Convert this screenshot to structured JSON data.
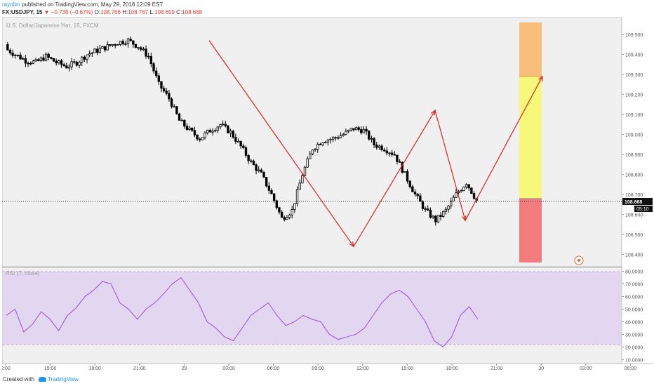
{
  "header": {
    "user": "raynlim",
    "published": "published on TradingView.com, May 29, 2018 12:09 EST",
    "symbol": "FX:USDJPY, 15",
    "change": "▼ −0.736 (−0.67%)",
    "o_label": "O:",
    "o_value": "108.766",
    "h_label": "H:",
    "h_value": "108.767",
    "l_label": "L:",
    "l_value": "108.659",
    "c_label": "C:",
    "c_value": "108.668"
  },
  "price_pane": {
    "title": "U.S. Dollar/Japanese Yen, 15, FXCM",
    "ticks": [
      "109.500",
      "109.400",
      "109.300",
      "109.200",
      "109.100",
      "109.000",
      "108.900",
      "108.800",
      "108.700",
      "108.600",
      "108.500",
      "108.400"
    ],
    "last_price": "108.668",
    "countdown": "05:10"
  },
  "rsi_pane": {
    "title": "RSI (7, close)",
    "ticks": [
      "80.0000",
      "70.0000",
      "60.0000",
      "50.0000",
      "40.0000",
      "30.0000",
      "20.0000",
      "10.0000"
    ]
  },
  "time_axis": [
    "2:00",
    "15:00",
    "18:00",
    "21:00",
    "29",
    "03:00",
    "06:00",
    "09:00",
    "12:00",
    "15:00",
    "18:00",
    "21:00",
    "30",
    "03:00",
    "06:00"
  ],
  "footer": {
    "created_with": "Created with",
    "brand": "TradingView"
  },
  "colors": {
    "pane_bg": "#f0f0f0",
    "rsi_band": "#e3d6f1",
    "rsi_line": "#9c4ed1",
    "candle": "#000000",
    "pattern_line": "#e02020",
    "target_orange": "#f8bd7b",
    "target_yellow": "#f7f77a",
    "stop_red": "#f47c7c",
    "accent": "#2196f3"
  },
  "chart_data": [
    {
      "type": "line",
      "title": "U.S. Dollar/Japanese Yen, 15, FXCM",
      "series": [
        {
          "name": "U.S. Dollar/Japanese Yen",
          "values": [
            109.43,
            109.4,
            109.37,
            109.36,
            109.39,
            109.36,
            109.34,
            109.36,
            109.4,
            109.42,
            109.44,
            109.46,
            109.47,
            109.44,
            109.39,
            109.25,
            109.18,
            109.07,
            109.02,
            108.98,
            109.02,
            109.05,
            109.01,
            108.94,
            108.86,
            108.8,
            108.7,
            108.58,
            108.62,
            108.8,
            108.93,
            108.97,
            108.98,
            109.0,
            109.03,
            109.02,
            108.95,
            108.93,
            108.9,
            108.8,
            108.7,
            108.62,
            108.57,
            108.62,
            108.7,
            108.76,
            108.67
          ]
        },
        {
          "name": "Pattern",
          "values": [
            109.47,
            108.44,
            109.12,
            108.57,
            109.29
          ]
        }
      ],
      "ylim": [
        108.36,
        109.56
      ],
      "zones": {
        "target_high": 109.56,
        "target_mid": 109.29,
        "entry": 108.68,
        "stop": 108.36
      }
    },
    {
      "type": "line",
      "title": "RSI (7, close)",
      "series": [
        {
          "name": "RSI (7, close)",
          "values": [
            45,
            50,
            32,
            38,
            48,
            42,
            33,
            45,
            51,
            60,
            65,
            72,
            70,
            55,
            50,
            42,
            50,
            55,
            62,
            70,
            75,
            65,
            55,
            40,
            35,
            28,
            25,
            35,
            45,
            50,
            55,
            45,
            37,
            40,
            45,
            42,
            40,
            30,
            26,
            28,
            30,
            35,
            45,
            55,
            62,
            65,
            60,
            50,
            40,
            25,
            20,
            28,
            45,
            52,
            42
          ]
        }
      ],
      "ylim": [
        8,
        82
      ],
      "band": [
        20,
        80
      ]
    }
  ]
}
